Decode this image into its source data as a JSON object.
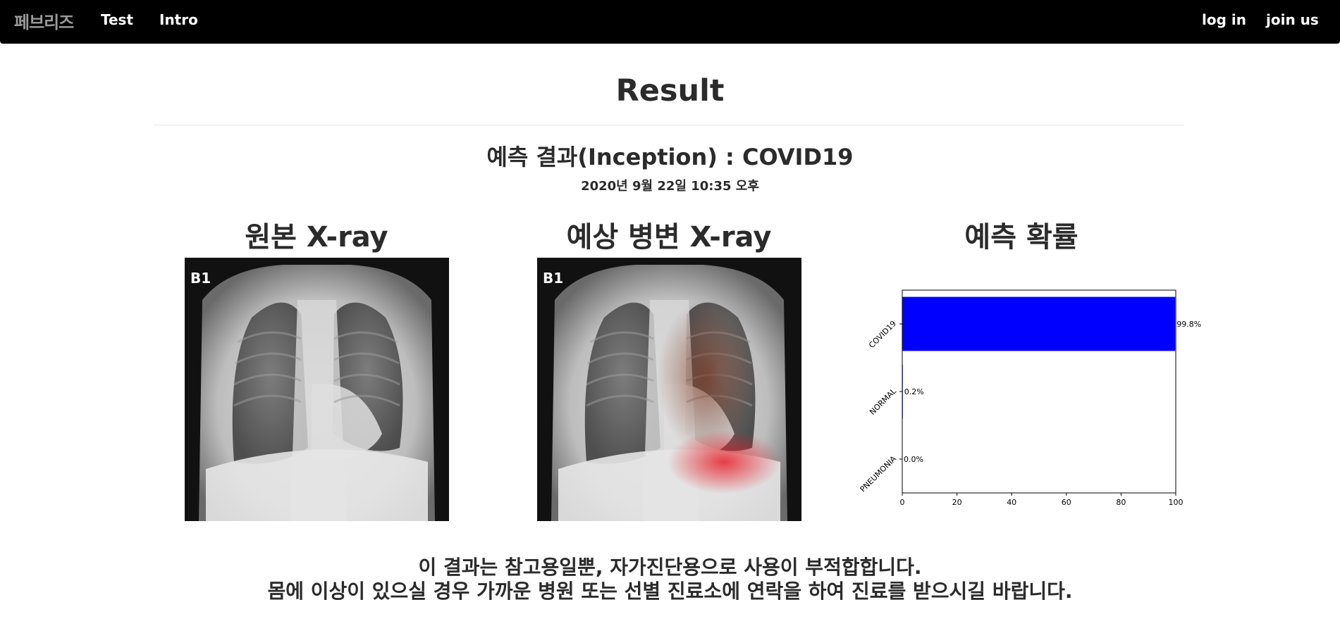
{
  "nav": {
    "brand": "페브리즈",
    "links": [
      "Test",
      "Intro"
    ],
    "right_links": [
      "log in",
      "join us"
    ]
  },
  "header": {
    "title": "Result",
    "result_text": "예측 결과(Inception) : COVID19",
    "date_text": "2020년 9월 22일 10:35 오후"
  },
  "panels": {
    "original_title": "원본 X-ray",
    "lesion_title": "예상 병변 X-ray",
    "probability_title": "예측 확률",
    "image_label": "B1"
  },
  "chart_data": {
    "type": "bar",
    "orientation": "horizontal",
    "categories": [
      "COVID19",
      "NORMAL",
      "PNEUMONIA"
    ],
    "values": [
      99.8,
      0.2,
      0.0
    ],
    "value_labels": [
      "99.8%",
      "0.2%",
      "0.0%"
    ],
    "xlim": [
      0,
      100
    ],
    "xticks": [
      0,
      20,
      40,
      60,
      80,
      100
    ],
    "bar_color": "#0000ff",
    "grid": false
  },
  "notice": {
    "line1": "이 결과는 참고용일뿐, 자가진단용으로 사용이 부적합합니다.",
    "line2": "몸에 이상이 있으실 경우 가까운 병원 또는 선별 진료소에 연락을 하여 진료를 받으시길 바랍니다."
  },
  "colors": {
    "navbar": "#000000",
    "brand": "#9a9a9a",
    "text": "#2b2b2b",
    "heatmap": "#e8202a"
  }
}
